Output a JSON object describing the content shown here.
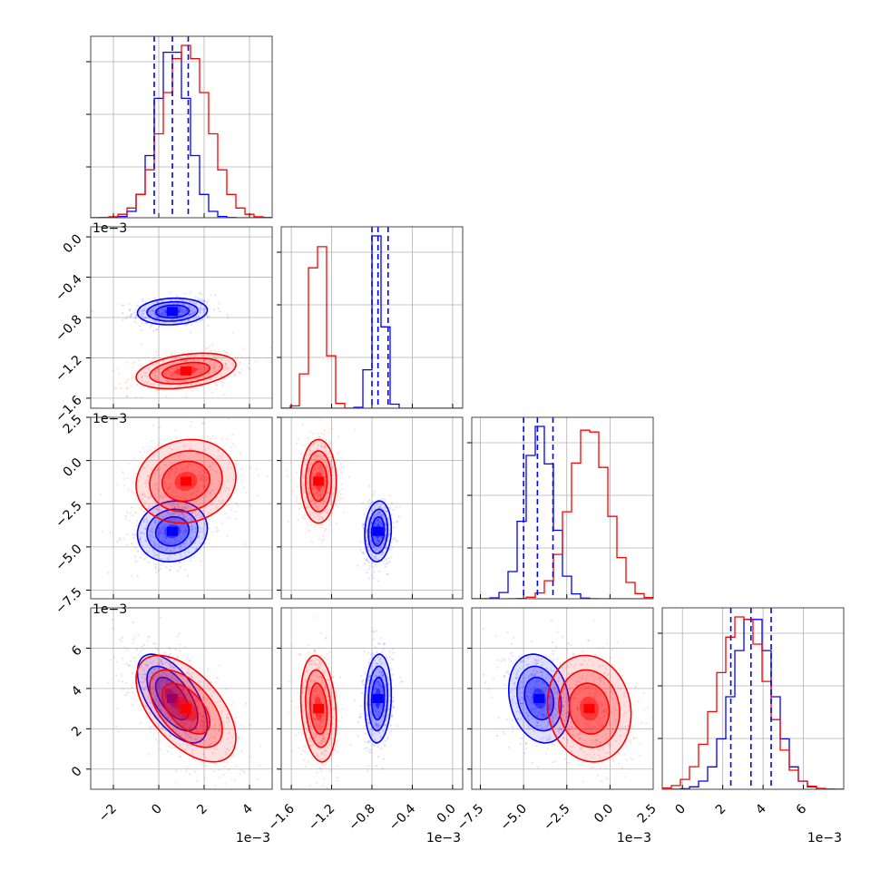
{
  "colors": {
    "series_a": "#0000ff",
    "series_b": "#ff0000",
    "grid": "#b0b0b0",
    "frame": "#444444"
  },
  "chart_data": {
    "type": "corner",
    "grid": true,
    "parameters": 4,
    "axes": [
      {
        "index": 0,
        "range": [
          -3.0,
          5.0
        ],
        "ticks": [
          -2,
          0,
          2,
          4
        ],
        "tick_labels": [
          "−2",
          "0",
          "2",
          "4"
        ],
        "scale_label": "1e−3"
      },
      {
        "index": 1,
        "range": [
          -1.7,
          0.1
        ],
        "ticks": [
          -1.6,
          -1.2,
          -0.8,
          -0.4,
          0.0
        ],
        "tick_labels": [
          "−1.6",
          "−1.2",
          "−0.8",
          "−0.4",
          "0.0"
        ],
        "scale_label": "1e−3"
      },
      {
        "index": 2,
        "range": [
          -8.0,
          2.5
        ],
        "ticks": [
          -7.5,
          -5.0,
          -2.5,
          0.0,
          2.5
        ],
        "tick_labels": [
          "−7.5",
          "−5.0",
          "−2.5",
          "0.0",
          "2.5"
        ],
        "scale_label": "1e−3"
      },
      {
        "index": 3,
        "range": [
          -1.0,
          8.0
        ],
        "ticks": [
          0,
          2,
          4,
          6
        ],
        "tick_labels": [
          "0",
          "2",
          "4",
          "6"
        ],
        "scale_label": "1e−3"
      }
    ],
    "series": [
      {
        "color": "blue",
        "mean": [
          0.6,
          -0.74,
          -4.1,
          3.5
        ],
        "sd": [
          0.7,
          0.06,
          0.8,
          1.0
        ],
        "quantiles": [
          [
            -0.2,
            0.6,
            1.3
          ],
          [
            -0.8,
            -0.74,
            -0.64
          ],
          [
            -5.0,
            -4.2,
            -3.3
          ],
          [
            2.4,
            3.4,
            4.4
          ]
        ]
      },
      {
        "color": "red",
        "mean": [
          1.2,
          -1.33,
          -1.2,
          3.0
        ],
        "sd": [
          1.0,
          0.08,
          1.1,
          1.2
        ]
      }
    ],
    "correlations": [
      {
        "pair": [
          1,
          0
        ],
        "blue": 0.1,
        "red": 0.35
      },
      {
        "pair": [
          2,
          0
        ],
        "blue": 0.1,
        "red": 0.1
      },
      {
        "pair": [
          2,
          1
        ],
        "blue": 0.1,
        "red": 0.0
      },
      {
        "pair": [
          3,
          0
        ],
        "blue": -0.6,
        "red": -0.55
      },
      {
        "pair": [
          3,
          1
        ],
        "blue": 0.1,
        "red": -0.2
      },
      {
        "pair": [
          3,
          2
        ],
        "blue": -0.2,
        "red": -0.1
      }
    ]
  }
}
